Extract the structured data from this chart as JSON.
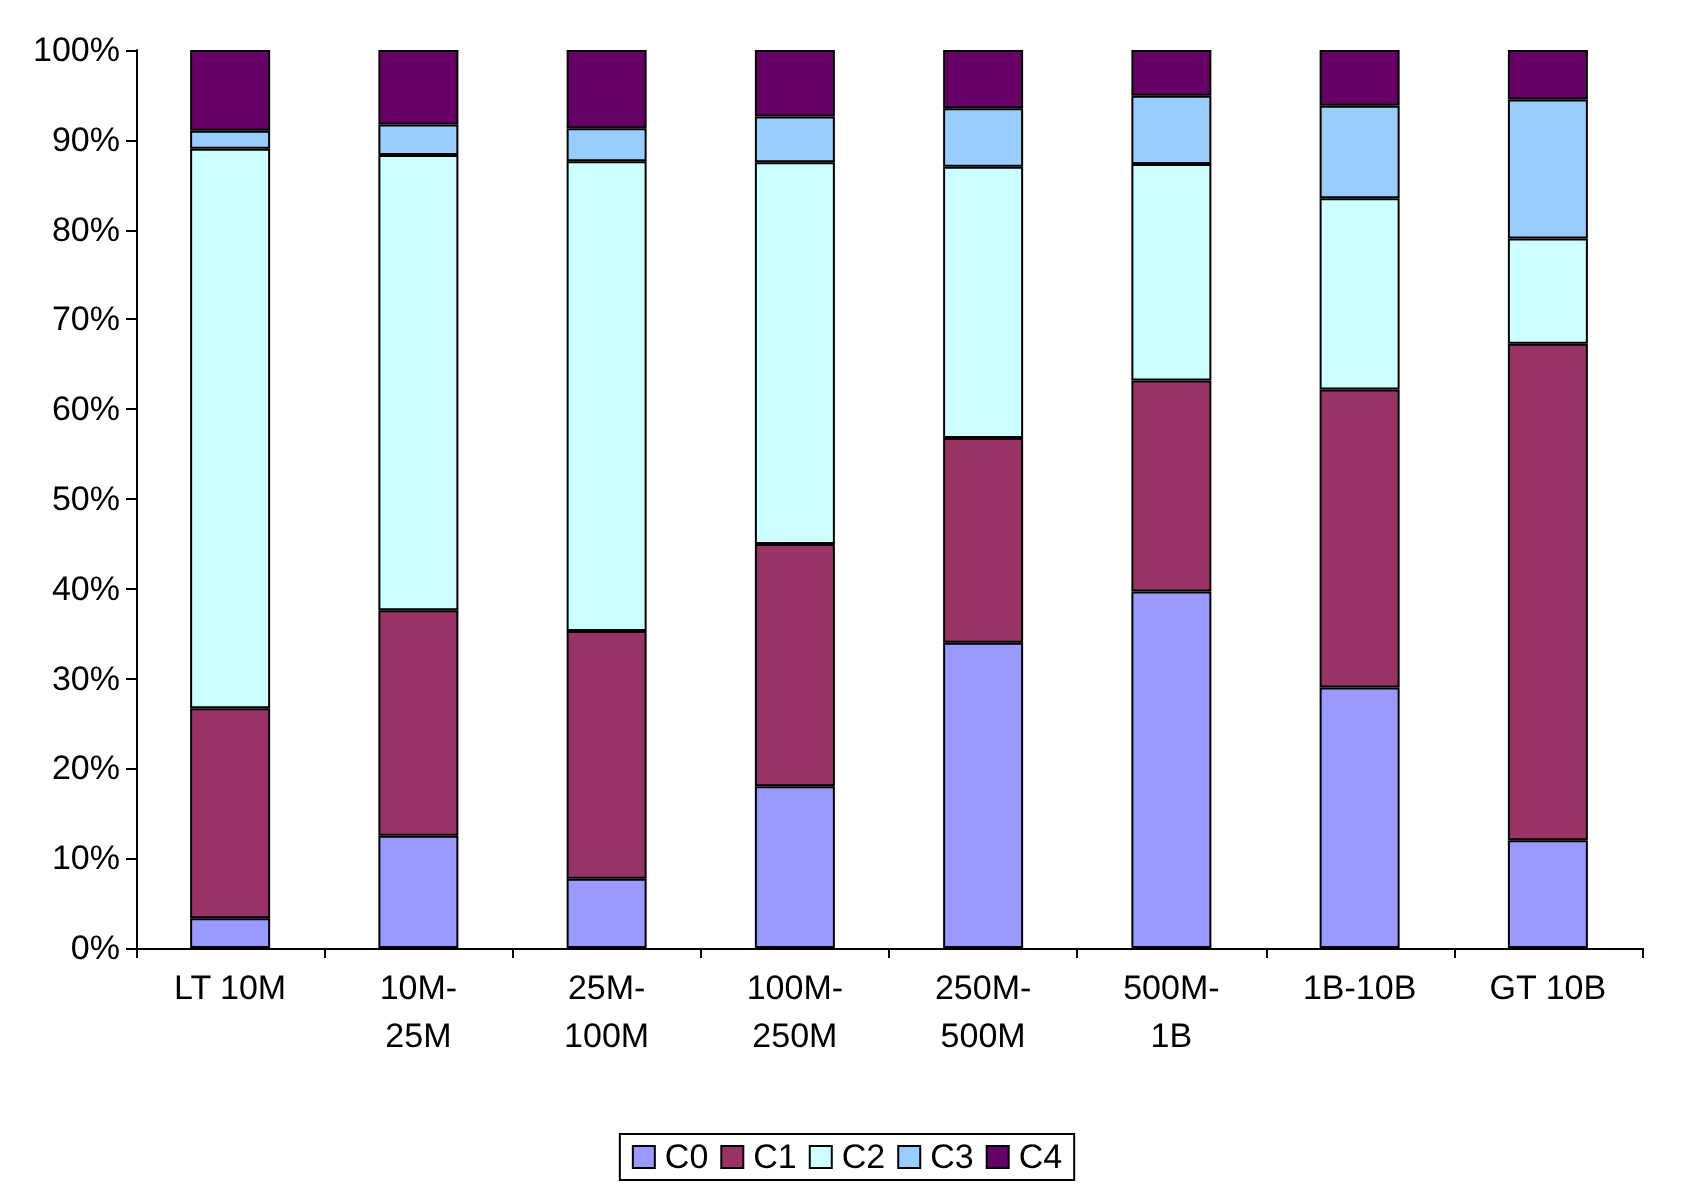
{
  "chart_data": {
    "type": "bar",
    "stacked": true,
    "categories": [
      "LT 10M",
      "10M-25M",
      "25M-100M",
      "100M-250M",
      "250M-500M",
      "500M-1B",
      "1B-10B",
      "GT 10B"
    ],
    "series": [
      {
        "name": "C0",
        "color": "#9999ff",
        "values": [
          3.3,
          12.5,
          7.7,
          18,
          34,
          39.7,
          29,
          12
        ]
      },
      {
        "name": "C1",
        "color": "#993366",
        "values": [
          23.4,
          25.1,
          27.6,
          27,
          22.8,
          23.5,
          33.2,
          55.3
        ]
      },
      {
        "name": "C2",
        "color": "#ccffff",
        "values": [
          62.3,
          50.7,
          52.3,
          42.5,
          30.2,
          24.1,
          21.3,
          11.7
        ]
      },
      {
        "name": "C3",
        "color": "#99ccff",
        "values": [
          2,
          3.4,
          3.7,
          5.1,
          6.5,
          7.6,
          10.3,
          15.5
        ]
      },
      {
        "name": "C4",
        "color": "#660066",
        "values": [
          9,
          8.3,
          8.7,
          7.4,
          6.5,
          5.1,
          6.2,
          5.5
        ]
      }
    ],
    "ylim": [
      0,
      100
    ],
    "yticks": [
      {
        "value": 0,
        "label": "0%"
      },
      {
        "value": 10,
        "label": "10%"
      },
      {
        "value": 20,
        "label": "20%"
      },
      {
        "value": 30,
        "label": "30%"
      },
      {
        "value": 40,
        "label": "40%"
      },
      {
        "value": 50,
        "label": "50%"
      },
      {
        "value": 60,
        "label": "60%"
      },
      {
        "value": 70,
        "label": "70%"
      },
      {
        "value": 80,
        "label": "80%"
      },
      {
        "value": 90,
        "label": "90%"
      },
      {
        "value": 100,
        "label": "100%"
      }
    ],
    "grid": false,
    "legend": "bottom"
  }
}
